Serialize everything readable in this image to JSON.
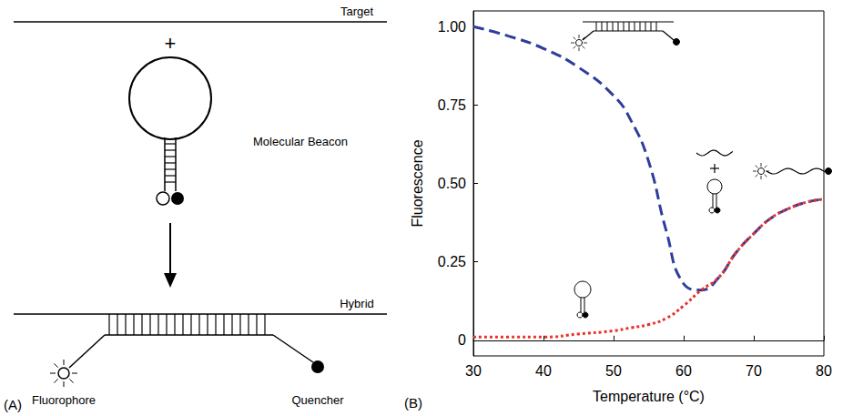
{
  "diagram": {
    "panel_label": "(A)",
    "target": "Target",
    "plus": "+",
    "beacon": "Molecular Beacon",
    "hybrid": "Hybrid",
    "fluorophore": "Fluorophore",
    "quencher": "Quencher"
  },
  "chart_data": {
    "type": "line",
    "panel_label": "(B)",
    "x_label": "Temperature (°C)",
    "y_label": "Fluorescence",
    "x": [
      30,
      35,
      40,
      45,
      50,
      52.5,
      55,
      57.5,
      60,
      62.5,
      65,
      67.5,
      70,
      72.5,
      75,
      77.5,
      80
    ],
    "series": [
      {
        "color": "#2e3d9c",
        "line_style": "dashed",
        "values": [
          1.0,
          0.97,
          0.93,
          0.87,
          0.78,
          0.7,
          0.57,
          0.35,
          0.18,
          0.16,
          0.2,
          0.28,
          0.34,
          0.39,
          0.42,
          0.44,
          0.45
        ]
      },
      {
        "color": "#e8322b",
        "line_style": "dotted",
        "values": [
          0.01,
          0.01,
          0.01,
          0.02,
          0.03,
          0.04,
          0.05,
          0.07,
          0.11,
          0.16,
          0.2,
          0.28,
          0.34,
          0.39,
          0.42,
          0.44,
          0.45
        ]
      }
    ],
    "xlim": [
      30,
      80
    ],
    "xticks": [
      30,
      40,
      50,
      60,
      70,
      80
    ],
    "ylim": [
      -0.05,
      1.05
    ],
    "yticks": [
      0,
      0.25,
      {
        "value": 0.5,
        "label": "0.50"
      },
      0.75,
      {
        "value": 1,
        "label": "1.00"
      }
    ],
    "grid": false
  }
}
